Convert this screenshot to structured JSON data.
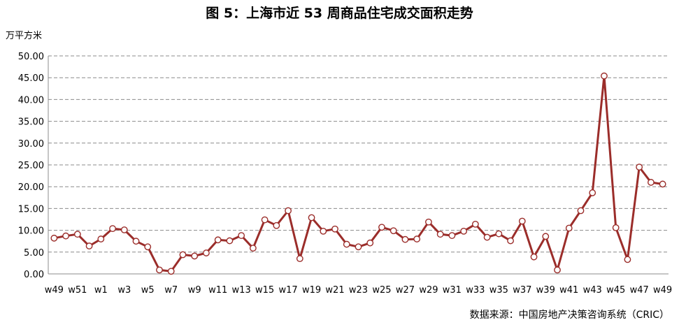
{
  "chart_data": {
    "type": "line",
    "title": "图 5：上海市近 53 周商品住宅成交面积走势",
    "ylabel": "万平方米",
    "source": "数据来源：中国房地产决策咨询系统（CRIC）",
    "ylim": [
      0,
      50
    ],
    "yticks": [
      "0.00",
      "5.00",
      "10.00",
      "15.00",
      "20.00",
      "25.00",
      "30.00",
      "35.00",
      "40.00",
      "45.00",
      "50.00"
    ],
    "x": [
      "w49",
      "w50",
      "w51",
      "w52",
      "w1",
      "w2",
      "w3",
      "w4",
      "w5",
      "w6",
      "w7",
      "w8",
      "w9",
      "w10",
      "w11",
      "w12",
      "w13",
      "w14",
      "w15",
      "w16",
      "w17",
      "w18",
      "w19",
      "w20",
      "w21",
      "w22",
      "w23",
      "w24",
      "w25",
      "w26",
      "w27",
      "w28",
      "w29",
      "w30",
      "w31",
      "w32",
      "w33",
      "w34",
      "w35",
      "w36",
      "w37",
      "w38",
      "w39",
      "w40",
      "w41",
      "w42",
      "w43",
      "w44",
      "w45",
      "w46",
      "w47",
      "w48",
      "w49"
    ],
    "xticks_shown": [
      "w49",
      "w51",
      "w1",
      "w3",
      "w5",
      "w7",
      "w9",
      "w11",
      "w13",
      "w15",
      "w17",
      "w19",
      "w21",
      "w23",
      "w25",
      "w27",
      "w29",
      "w31",
      "w33",
      "w35",
      "w37",
      "w39",
      "w41",
      "w43",
      "w45",
      "w47",
      "w49"
    ],
    "series": [
      {
        "name": "",
        "color": "#9B2D2A",
        "values": [
          8.2,
          8.7,
          9.1,
          6.4,
          8.0,
          10.4,
          10.1,
          7.5,
          6.2,
          0.9,
          0.6,
          4.4,
          4.1,
          4.8,
          7.8,
          7.6,
          8.8,
          5.9,
          12.4,
          11.1,
          14.5,
          3.5,
          12.9,
          9.8,
          10.3,
          6.8,
          6.2,
          7.1,
          10.7,
          9.9,
          7.9,
          8.0,
          11.9,
          9.1,
          8.8,
          9.8,
          11.4,
          8.4,
          9.2,
          7.6,
          12.1,
          3.9,
          8.6,
          0.9,
          10.5,
          14.5,
          18.6,
          45.4,
          10.6,
          3.3,
          24.5,
          21.0,
          20.6
        ]
      }
    ],
    "grid": true
  }
}
